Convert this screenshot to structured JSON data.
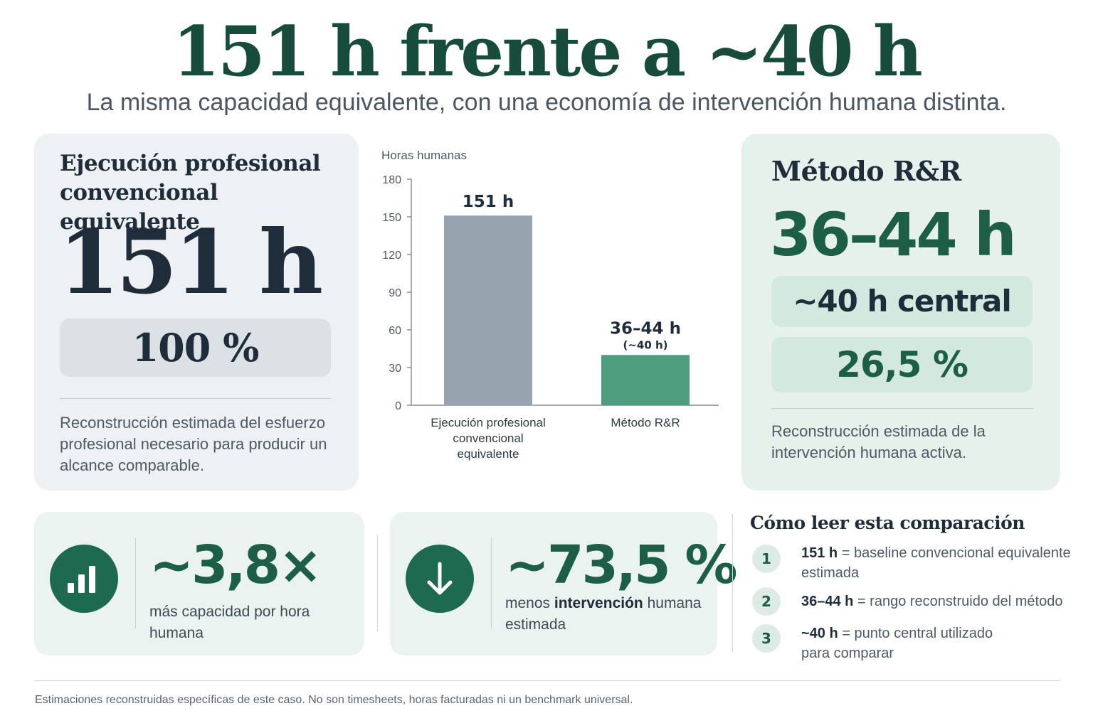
{
  "header": {
    "title": "151 h frente a ~40 h",
    "subtitle": "La misma capacidad equivalente, con una economía de intervención humana distinta."
  },
  "left_card": {
    "heading": "Ejecución profesional convencional equivalente",
    "value": "151 h",
    "percent": "100 %",
    "description": "Reconstrucción estimada del esfuerzo profesional necesario para producir un alcance comparable."
  },
  "right_card": {
    "heading": "Método R&R",
    "value": "36–44 h",
    "central": "~40 h central",
    "percent": "26,5 %",
    "description": "Reconstrucción estimada de la intervención humana activa."
  },
  "chart_data": {
    "type": "bar",
    "ylabel": "Horas humanas",
    "xlabel": "",
    "ylim": [
      0,
      180
    ],
    "yticks": [
      0,
      30,
      60,
      90,
      120,
      150,
      180
    ],
    "categories": [
      "Ejecución profesional convencional equivalente",
      "Método R&R"
    ],
    "category_lines": [
      [
        "Ejecución profesional",
        "convencional",
        "equivalente"
      ],
      [
        "Método R&R"
      ]
    ],
    "values": [
      151,
      40
    ],
    "value_labels": [
      "151 h",
      "36–44 h"
    ],
    "value_sublabels": [
      "",
      "(~40 h)"
    ],
    "colors": [
      "#97a4ad",
      "#4e9d7f"
    ],
    "grid": false,
    "legend": "none"
  },
  "stats": [
    {
      "icon": "bar-chart-icon",
      "value": "~3,8×",
      "text": "más capacidad por hora humana"
    },
    {
      "icon": "arrow-down-icon",
      "value": "~73,5 %",
      "text_before": "menos ",
      "text_bold": "intervención",
      "text_after": " humana estimada"
    }
  ],
  "guide": {
    "title": "Cómo leer esta comparación",
    "items": [
      {
        "num": "1",
        "bold": "151 h",
        "rest": " = baseline convencional equivalente estimada"
      },
      {
        "num": "2",
        "bold": "36–44 h",
        "rest": " = rango reconstruido del método"
      },
      {
        "num": "3",
        "bold": "~40 h",
        "rest": " = punto central utilizado para comparar"
      }
    ]
  },
  "footnote": "Estimaciones reconstruidas específicas de este caso. No son timesheets, horas facturadas ni un benchmark universal.",
  "colors": {
    "accent_green": "#1d5e47",
    "bar_gray": "#97a4ad",
    "bar_green": "#4e9d7f"
  }
}
